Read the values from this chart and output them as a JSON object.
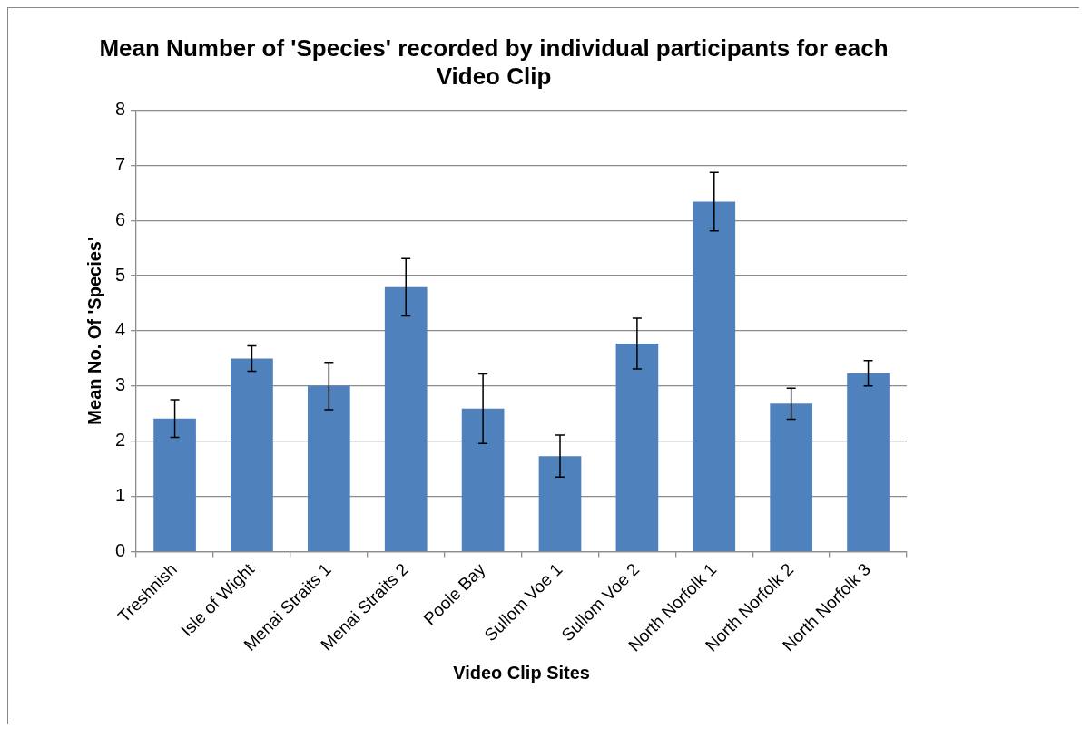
{
  "chart_data": {
    "type": "bar",
    "title": "Mean Number of 'Species' recorded by individual participants for each Video Clip",
    "xlabel": "Video Clip Sites",
    "ylabel": "Mean No. Of 'Species'",
    "categories": [
      "Treshnish",
      "Isle of Wight",
      "Menai Straits 1",
      "Menai Straits 2",
      "Poole Bay",
      "Sullom Voe 1",
      "Sullom Voe 2",
      "North Norfolk 1",
      "North Norfolk 2",
      "North Norfolk 3"
    ],
    "values": [
      2.41,
      3.5,
      3.0,
      4.79,
      2.59,
      1.73,
      3.77,
      6.34,
      2.68,
      3.23
    ],
    "errors": [
      0.34,
      0.23,
      0.43,
      0.52,
      0.63,
      0.38,
      0.46,
      0.53,
      0.28,
      0.23
    ],
    "color": "#4f81bd",
    "ylim": [
      0,
      8
    ],
    "yticks": [
      0,
      1,
      2,
      3,
      4,
      5,
      6,
      7,
      8
    ],
    "grid": "y",
    "legend": false
  }
}
